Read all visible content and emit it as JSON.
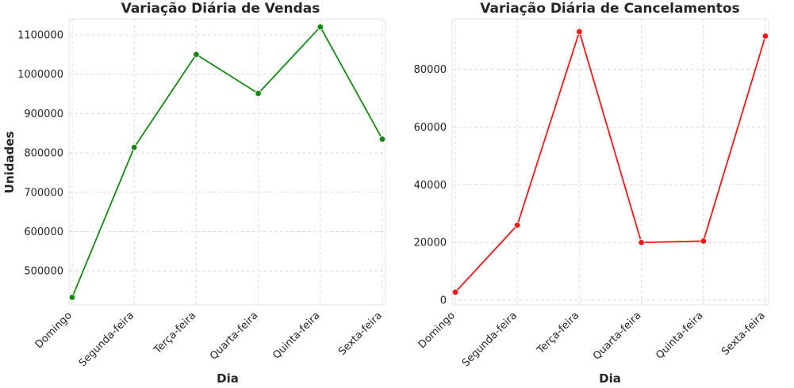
{
  "chart_data": [
    {
      "type": "line",
      "title": "Variação Diária de Vendas",
      "xlabel": "Dia",
      "ylabel": "Unidades",
      "categories": [
        "Domingo",
        "Segunda-feira",
        "Terça-feira",
        "Quarta-feira",
        "Quinta-feira",
        "Sexta-feira"
      ],
      "series": [
        {
          "values": [
            433000,
            814000,
            1050000,
            951000,
            1120000,
            835000
          ]
        }
      ],
      "yticks": [
        500000,
        600000,
        700000,
        800000,
        900000,
        1000000,
        1100000
      ],
      "ytick_labels": [
        "500000",
        "600000",
        "700000",
        "800000",
        "900000",
        "1000000",
        "1100000"
      ],
      "ylim": [
        414000,
        1140000
      ],
      "color": "#148a14",
      "grid": true
    },
    {
      "type": "line",
      "title": "Variação Diária de Cancelamentos",
      "xlabel": "Dia",
      "ylabel": "",
      "categories": [
        "Domingo",
        "Segunda-feira",
        "Terça-feira",
        "Quarta-feira",
        "Quinta-feira",
        "Sexta-feira"
      ],
      "series": [
        {
          "values": [
            2800,
            26000,
            93000,
            20000,
            20500,
            91500
          ]
        }
      ],
      "yticks": [
        0,
        20000,
        40000,
        60000,
        80000
      ],
      "ytick_labels": [
        "0",
        "20000",
        "40000",
        "60000",
        "80000"
      ],
      "ylim": [
        -1600,
        97400
      ],
      "color": "#ff1414",
      "grid": true
    }
  ]
}
